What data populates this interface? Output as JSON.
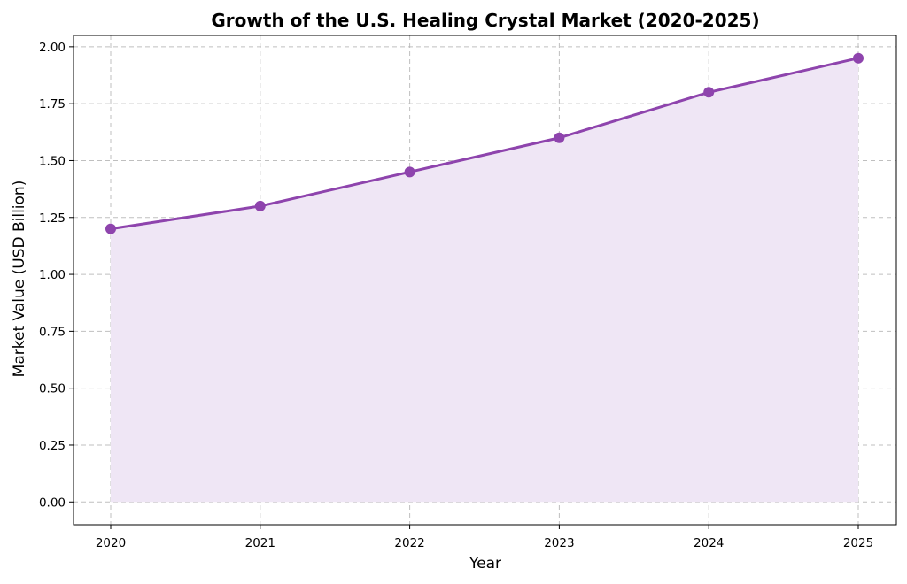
{
  "chart_data": {
    "type": "area",
    "title": "Growth of the U.S. Healing Crystal Market (2020-2025)",
    "xlabel": "Year",
    "ylabel": "Market Value (USD Billion)",
    "x": [
      "2020",
      "2021",
      "2022",
      "2023",
      "2024",
      "2025"
    ],
    "series": [
      {
        "name": "Market Value",
        "values": [
          1.2,
          1.3,
          1.45,
          1.6,
          1.8,
          1.95
        ]
      }
    ],
    "ylim": [
      -0.1,
      2.05
    ],
    "yticks": [
      "0.00",
      "0.25",
      "0.50",
      "0.75",
      "1.00",
      "1.25",
      "1.50",
      "1.75",
      "2.00"
    ],
    "grid": true,
    "colors": {
      "line": "#8e44ad",
      "fill": "#efe6f5",
      "grid": "#b0b0b0"
    }
  }
}
